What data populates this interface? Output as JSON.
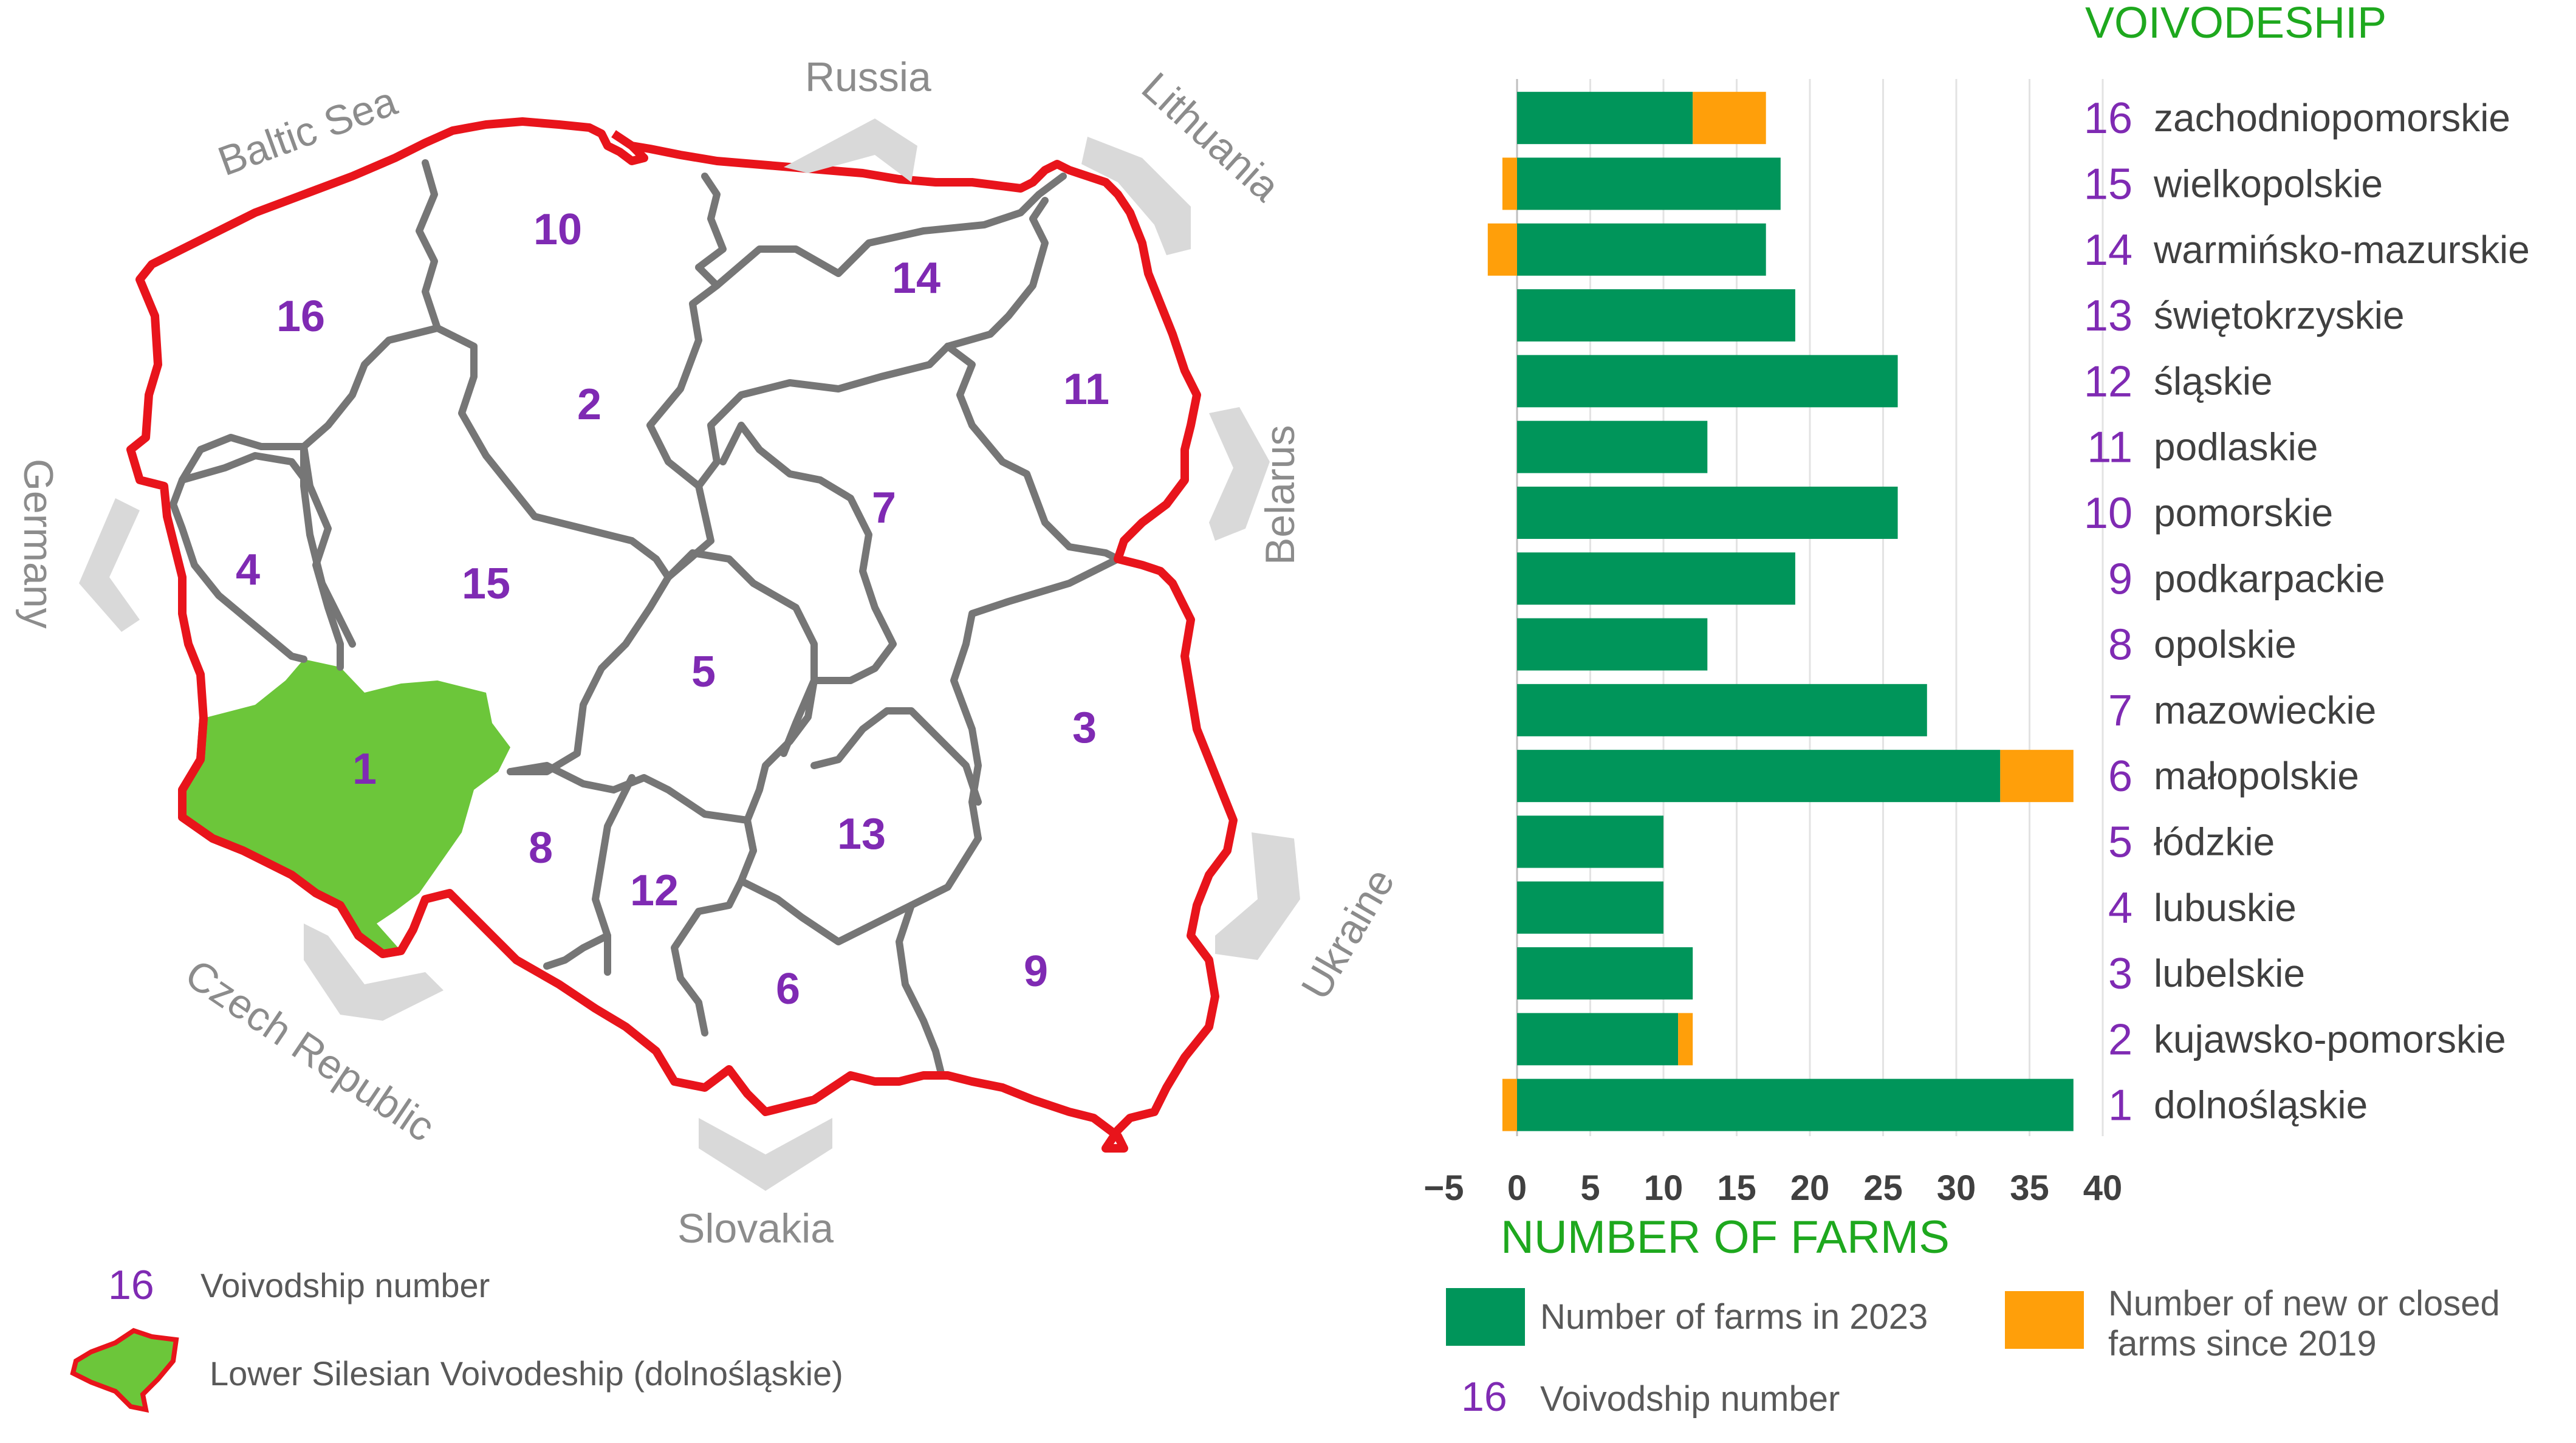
{
  "map": {
    "seas_and_neighbors": [
      "Baltic Sea",
      "Russia",
      "Lithuania",
      "Belarus",
      "Ukraine",
      "Slovakia",
      "Czech Republic",
      "Germany"
    ],
    "region_numbers": [
      "1",
      "2",
      "3",
      "4",
      "5",
      "6",
      "7",
      "8",
      "9",
      "10",
      "11",
      "12",
      "13",
      "14",
      "15",
      "16"
    ],
    "legend": {
      "number_sample": "16",
      "number_label": "Voivodship number",
      "highlight_label": "Lower Silesian Voivodeship (dolnośląskie)",
      "highlight_color": "#6cc63a",
      "border_color": "#e8141b"
    }
  },
  "chart_data": {
    "type": "bar",
    "orientation": "horizontal",
    "stacked": true,
    "y_title": "VOIVODESHIP",
    "xlabel": "NUMBER OF FARMS",
    "xlim": [
      -5,
      40
    ],
    "xticks": [
      "−5",
      "0",
      "5",
      "10",
      "15",
      "20",
      "25",
      "30",
      "35",
      "40"
    ],
    "grid": true,
    "categories": [
      {
        "num": "16",
        "name": "zachodniopomorskie"
      },
      {
        "num": "15",
        "name": "wielkopolskie"
      },
      {
        "num": "14",
        "name": "warmińsko-mazurskie"
      },
      {
        "num": "13",
        "name": "świętokrzyskie"
      },
      {
        "num": "12",
        "name": "śląskie"
      },
      {
        "num": "11",
        "name": "podlaskie"
      },
      {
        "num": "10",
        "name": "pomorskie"
      },
      {
        "num": "9",
        "name": "podkarpackie"
      },
      {
        "num": "8",
        "name": "opolskie"
      },
      {
        "num": "7",
        "name": "mazowieckie"
      },
      {
        "num": "6",
        "name": "małopolskie"
      },
      {
        "num": "5",
        "name": "łódzkie"
      },
      {
        "num": "4",
        "name": "lubuskie"
      },
      {
        "num": "3",
        "name": "lubelskie"
      },
      {
        "num": "2",
        "name": "kujawsko-pomorskie"
      },
      {
        "num": "1",
        "name": "dolnośląskie"
      }
    ],
    "series": [
      {
        "name": "Number of farms in 2023",
        "color": "#00955a",
        "values": [
          12,
          18,
          17,
          19,
          26,
          13,
          26,
          19,
          13,
          28,
          33,
          10,
          10,
          12,
          11,
          38
        ]
      },
      {
        "name": "Number of new or closed farms since 2019",
        "color": "#ff9f0a",
        "values": [
          5,
          -1,
          -2,
          0,
          0,
          0,
          0,
          0,
          0,
          0,
          5,
          0,
          0,
          0,
          1,
          -1
        ]
      }
    ],
    "legend": {
      "items": [
        "Number of farms in 2023",
        "Number of new or closed farms since 2019"
      ],
      "number_sample": "16",
      "number_label": "Voivodship number",
      "placement": "bottom"
    }
  }
}
